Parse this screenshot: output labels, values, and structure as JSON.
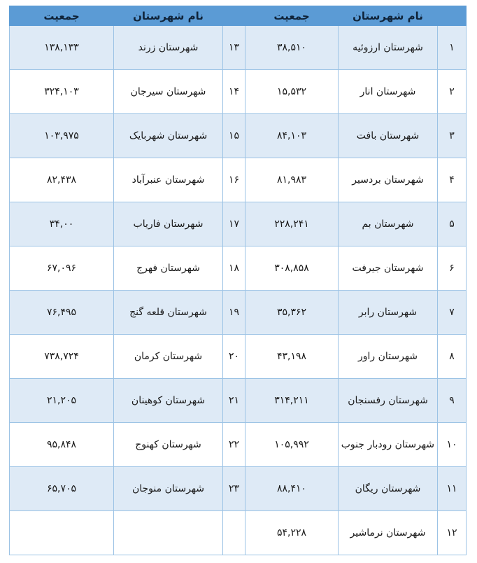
{
  "colors": {
    "header_bg": "#5b9bd5",
    "stripe_bg": "#deeaf6",
    "row_bg": "#ffffff",
    "border": "#9cc3e5",
    "text": "#1a1a1a"
  },
  "table": {
    "header": {
      "name_label": "نام شهرستان",
      "population_label": "جمعیت"
    },
    "rows": [
      {
        "no": "۱",
        "name": "شهرستان ارزوئیه",
        "population": "۳۸,۵۱۰",
        "no2": "۱۳",
        "name2": "شهرستان زرند",
        "population2": "۱۳۸,۱۳۳"
      },
      {
        "no": "۲",
        "name": "شهرستان انار",
        "population": "۱۵,۵۳۲",
        "no2": "۱۴",
        "name2": "شهرستان سیرجان",
        "population2": "۳۲۴,۱۰۳"
      },
      {
        "no": "۳",
        "name": "شهرستان بافت",
        "population": "۸۴,۱۰۳",
        "no2": "۱۵",
        "name2": "شهرستان شهربایک",
        "population2": "۱۰۳,۹۷۵"
      },
      {
        "no": "۴",
        "name": "شهرستان بردسیر",
        "population": "۸۱,۹۸۳",
        "no2": "۱۶",
        "name2": "شهرستان عنبرآباد",
        "population2": "۸۲,۴۳۸"
      },
      {
        "no": "۵",
        "name": "شهرستان بم",
        "population": "۲۲۸,۲۴۱",
        "no2": "۱۷",
        "name2": "شهرستان فاریاب",
        "population2": "۳۴,۰۰"
      },
      {
        "no": "۶",
        "name": "شهرستان جیرفت",
        "population": "۳۰۸,۸۵۸",
        "no2": "۱۸",
        "name2": "شهرستان فهرج",
        "population2": "۶۷,۰۹۶"
      },
      {
        "no": "۷",
        "name": "شهرستان رابر",
        "population": "۳۵,۳۶۲",
        "no2": "۱۹",
        "name2": "شهرستان قلعه گنج",
        "population2": "۷۶,۴۹۵"
      },
      {
        "no": "۸",
        "name": "شهرستان راور",
        "population": "۴۳,۱۹۸",
        "no2": "۲۰",
        "name2": "شهرستان کرمان",
        "population2": "۷۳۸,۷۲۴"
      },
      {
        "no": "۹",
        "name": "شهرستان رفسنجان",
        "population": "۳۱۴,۲۱۱",
        "no2": "۲۱",
        "name2": "شهرستان کوهینان",
        "population2": "۲۱,۲۰۵"
      },
      {
        "no": "۱۰",
        "name": "شهرستان رودبار جنوب",
        "population": "۱۰۵,۹۹۲",
        "no2": "۲۲",
        "name2": "شهرستان کهنوج",
        "population2": "۹۵,۸۴۸"
      },
      {
        "no": "۱۱",
        "name": "شهرستان ریگان",
        "population": "۸۸,۴۱۰",
        "no2": "۲۳",
        "name2": "شهرستان منوجان",
        "population2": "۶۵,۷۰۵"
      },
      {
        "no": "۱۲",
        "name": "شهرستان نرماشیر",
        "population": "۵۴,۲۲۸",
        "no2": "",
        "name2": "",
        "population2": ""
      }
    ]
  }
}
